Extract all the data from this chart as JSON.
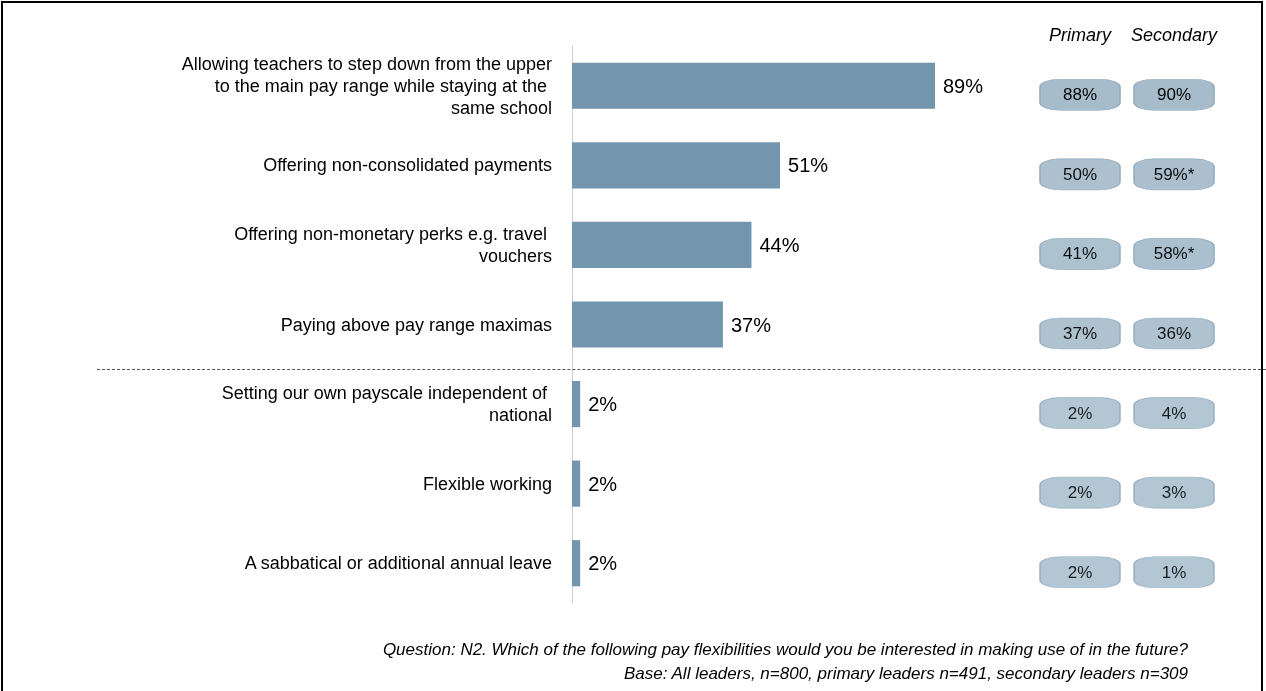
{
  "chart_data": [
    {
      "type": "bar",
      "orientation": "horizontal",
      "categories": [
        "Allowing teachers to step down from the upper to the main pay range while staying at the same school",
        "Offering non-consolidated payments",
        "Offering non-monetary perks e.g. travel vouchers",
        "Paying above pay range maximas",
        "Setting our own payscale independent of national",
        "Flexible working",
        "A sabbatical or additional annual leave"
      ],
      "values": [
        89,
        51,
        44,
        37,
        2,
        2,
        2
      ],
      "value_labels": [
        "89%",
        "51%",
        "44%",
        "37%",
        "2%",
        "2%",
        "2%"
      ],
      "color": "#7395ad",
      "annotations": [
        "Question: N2. Which of the following pay flexibilities would you be interested in making use of in the future?",
        "Base: All leaders, n=800, primary leaders n=491, secondary leaders n=309"
      ]
    },
    {
      "type": "heatmap",
      "categories": [
        "Primary",
        "Secondary"
      ],
      "y_categories": [
        null,
        null,
        null,
        null,
        null,
        null,
        null
      ],
      "cells": [
        [
          88,
          90
        ],
        [
          50,
          59
        ],
        [
          41,
          58
        ],
        [
          37,
          36
        ],
        [
          2,
          4
        ],
        [
          2,
          3
        ],
        [
          2,
          1
        ]
      ],
      "cell_labels": [
        [
          "88%",
          "90%"
        ],
        [
          "50%",
          "59%*"
        ],
        [
          "41%",
          "58%*"
        ],
        [
          "37%",
          "36%"
        ],
        [
          "2%",
          "4%"
        ],
        [
          "2%",
          "3%"
        ],
        [
          "2%",
          "1%"
        ]
      ],
      "color": "#a6bccb"
    }
  ]
}
